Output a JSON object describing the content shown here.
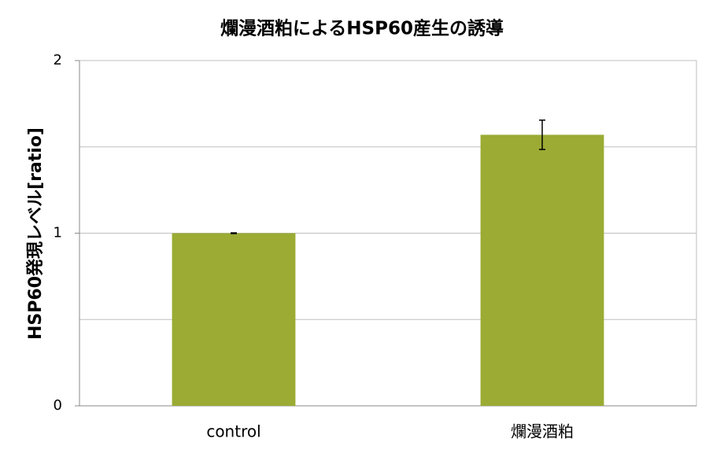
{
  "chart_data": {
    "type": "bar",
    "title": "爛漫酒粕によるHSP60産生の誘導",
    "y_label": "HSP60発現レベル[ratio]",
    "categories": [
      "control",
      "爛漫酒粕"
    ],
    "values": [
      1.0,
      1.57
    ],
    "errors": [
      0.002,
      0.085
    ],
    "color": "#9bab33",
    "ylim": [
      0,
      2
    ],
    "yticks": [
      0,
      1,
      2
    ],
    "minor_grid": [
      0.5,
      1.5
    ],
    "grid": true
  }
}
